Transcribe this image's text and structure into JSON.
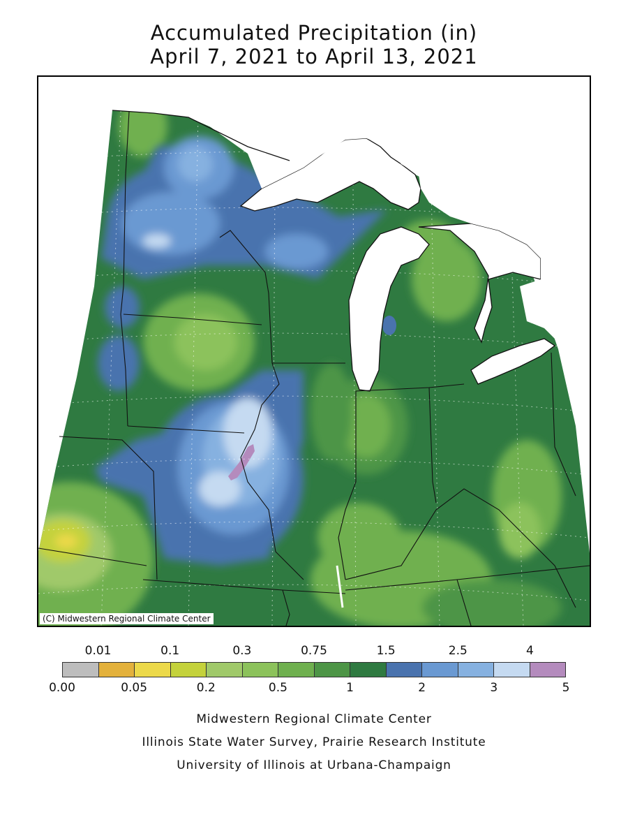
{
  "title": {
    "line1": "Accumulated Precipitation (in)",
    "line2": "April 7, 2021 to April 13, 2021"
  },
  "map": {
    "copyright": "(C) Midwestern Regional Climate Center",
    "land_color": "#2f7a41",
    "water_color": "#ffffff",
    "border_color": "#111111"
  },
  "legend": {
    "top_labels": [
      "0.01",
      "0.1",
      "0.3",
      "0.75",
      "1.5",
      "2.5",
      "4"
    ],
    "bottom_labels": [
      "0.00",
      "0.05",
      "0.2",
      "0.5",
      "1",
      "2",
      "3",
      "5"
    ],
    "colors": [
      "#bdbdbd",
      "#e3b13c",
      "#ecd94a",
      "#c4d23c",
      "#a0c96a",
      "#8cc25b",
      "#6fb04f",
      "#4d9546",
      "#2f7a41",
      "#4a73ae",
      "#6a99d2",
      "#86b1e0",
      "#c5daf1",
      "#b48bbd"
    ]
  },
  "credits": [
    "Midwestern Regional Climate Center",
    "Illinois State Water Survey, Prairie Research Institute",
    "University of Illinois at Urbana-Champaign"
  ]
}
